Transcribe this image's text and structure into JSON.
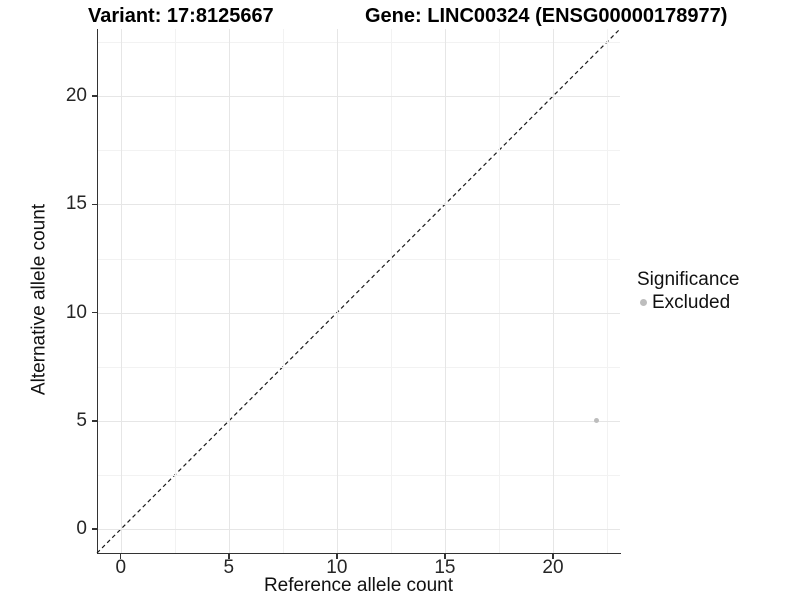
{
  "title": {
    "variant": "Variant: 17:8125667",
    "gene": "Gene: LINC00324 (ENSG00000178977)"
  },
  "chart_data": {
    "type": "scatter",
    "title_left": "Variant: 17:8125667",
    "title_right": "Gene: LINC00324 (ENSG00000178977)",
    "xlabel": "Reference allele count",
    "ylabel": "Alternative allele count",
    "xlim": [
      -1.1,
      23.1
    ],
    "ylim": [
      -1.1,
      23.1
    ],
    "x_major_ticks": [
      0,
      5,
      10,
      15,
      20
    ],
    "y_major_ticks": [
      0,
      5,
      10,
      15,
      20
    ],
    "x_minor_ticks": [
      2.5,
      7.5,
      12.5,
      17.5,
      22.5
    ],
    "y_minor_ticks": [
      2.5,
      7.5,
      12.5,
      17.5,
      22.5
    ],
    "grid": "major+minor",
    "points": [
      {
        "x": 22,
        "y": 5,
        "series": "Excluded"
      }
    ],
    "reference_line": {
      "type": "identity",
      "equation": "y = x",
      "style": "dashed",
      "from": [
        -1.1,
        -1.1
      ],
      "to": [
        23.1,
        23.1
      ]
    },
    "legend": {
      "title": "Significance",
      "position": "right",
      "entries": [
        {
          "label": "Excluded",
          "color": "#bdbdbd"
        }
      ]
    }
  },
  "colors": {
    "axis_line": "#333333",
    "grid_major": "#e6e6e6",
    "grid_minor": "#f2f2f2",
    "point_excluded": "#bdbdbd",
    "reference_line": "#1a1a1a",
    "text": "#111111"
  }
}
